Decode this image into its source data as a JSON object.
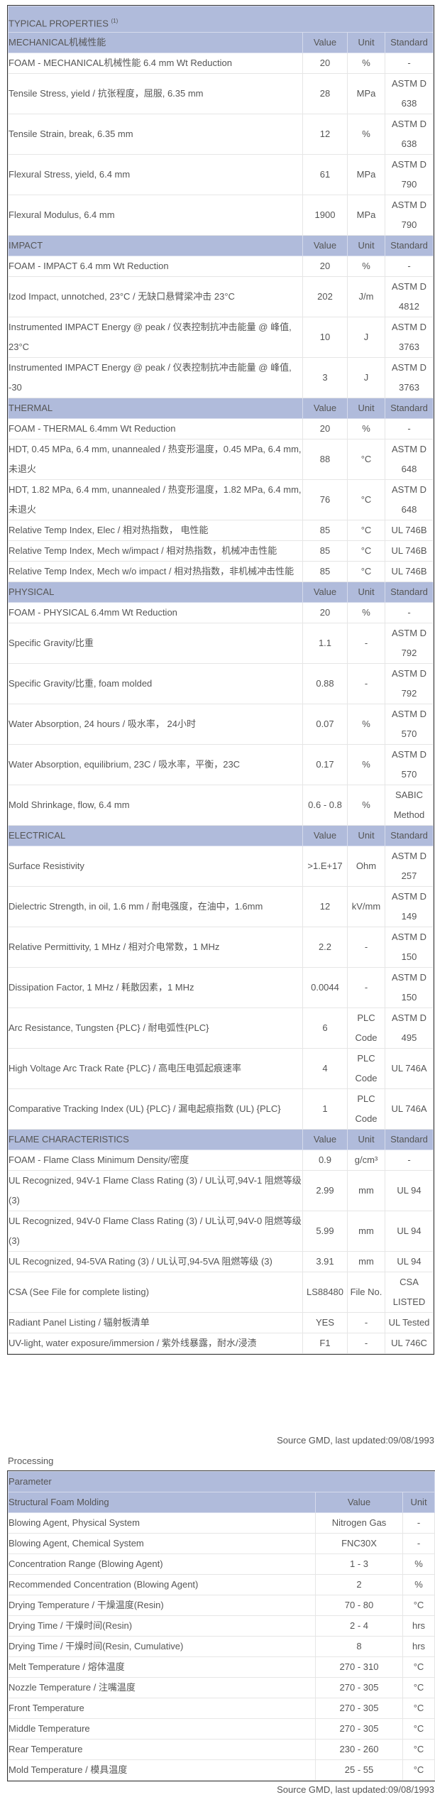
{
  "properties": {
    "title": "TYPICAL PROPERTIES",
    "title_sup": "(1)",
    "col_value": "Value",
    "col_unit": "Unit",
    "col_standard": "Standard",
    "sections": [
      {
        "name": "MECHANICAL机械性能",
        "rows": [
          [
            "FOAM - MECHANICAL机械性能 6.4 mm Wt Reduction",
            "20",
            "%",
            "-"
          ],
          [
            "Tensile Stress, yield / 抗张程度，屈服, 6.35 mm",
            "28",
            "MPa",
            "ASTM D 638"
          ],
          [
            "Tensile Strain, break, 6.35 mm",
            "12",
            "%",
            "ASTM D 638"
          ],
          [
            "Flexural Stress, yield, 6.4 mm",
            "61",
            "MPa",
            "ASTM D 790"
          ],
          [
            "Flexural Modulus, 6.4 mm",
            "1900",
            "MPa",
            "ASTM D 790"
          ]
        ]
      },
      {
        "name": "IMPACT",
        "rows": [
          [
            "FOAM - IMPACT 6.4 mm Wt Reduction",
            "20",
            "%",
            "-"
          ],
          [
            "Izod Impact, unnotched, 23°C / 无缺口悬臂梁冲击 23°C",
            "202",
            "J/m",
            "ASTM D 4812"
          ],
          [
            "Instrumented IMPACT Energy @ peak / 仪表控制抗冲击能量 @ 峰值, 23°C",
            "10",
            "J",
            "ASTM D 3763"
          ],
          [
            "Instrumented IMPACT Energy @ peak / 仪表控制抗冲击能量 @ 峰值, -30",
            "3",
            "J",
            "ASTM D 3763"
          ]
        ]
      },
      {
        "name": "THERMAL",
        "rows": [
          [
            "FOAM - THERMAL 6.4mm Wt Reduction",
            "20",
            "%",
            "-"
          ],
          [
            "HDT, 0.45 MPa, 6.4 mm, unannealed / 热变形温度，0.45 MPa, 6.4 mm, 未退火",
            "88",
            "°C",
            "ASTM D 648"
          ],
          [
            "HDT, 1.82 MPa, 6.4 mm, unannealed / 热变形温度，1.82 MPa, 6.4 mm, 未退火",
            "76",
            "°C",
            "ASTM D 648"
          ],
          [
            "Relative Temp Index, Elec / 相对热指数， 电性能",
            "85",
            "°C",
            "UL 746B"
          ],
          [
            "Relative Temp Index, Mech w/impact / 相对热指数，机械冲击性能",
            "85",
            "°C",
            "UL 746B"
          ],
          [
            "Relative Temp Index, Mech w/o impact / 相对热指数，非机械冲击性能",
            "85",
            "°C",
            "UL 746B"
          ]
        ]
      },
      {
        "name": "PHYSICAL",
        "rows": [
          [
            "FOAM - PHYSICAL 6.4mm Wt Reduction",
            "20",
            "%",
            "-"
          ],
          [
            "Specific Gravity/比重",
            "1.1",
            "-",
            "ASTM D 792"
          ],
          [
            "Specific Gravity/比重, foam molded",
            "0.88",
            "-",
            "ASTM D 792"
          ],
          [
            "Water Absorption, 24 hours / 吸水率， 24小时",
            "0.07",
            "%",
            "ASTM D 570"
          ],
          [
            "Water Absorption, equilibrium, 23C / 吸水率，平衡，23C",
            "0.17",
            "%",
            "ASTM D 570"
          ],
          [
            "Mold Shrinkage, flow, 6.4 mm",
            "0.6 - 0.8",
            "%",
            "SABIC Method"
          ]
        ]
      },
      {
        "name": "ELECTRICAL",
        "rows": [
          [
            "Surface Resistivity",
            ">1.E+17",
            "Ohm",
            "ASTM D 257"
          ],
          [
            "Dielectric Strength, in oil, 1.6 mm / 耐电强度，在油中，1.6mm",
            "12",
            "kV/mm",
            "ASTM D 149"
          ],
          [
            "Relative Permittivity, 1 MHz / 相对介电常数，1 MHz",
            "2.2",
            "-",
            "ASTM D 150"
          ],
          [
            "Dissipation Factor, 1 MHz / 耗散因素，1 MHz",
            "0.0044",
            "-",
            "ASTM D 150"
          ],
          [
            "Arc Resistance, Tungsten {PLC} / 耐电弧性{PLC}",
            "6",
            "PLC Code",
            "ASTM D 495"
          ],
          [
            "High Voltage Arc Track Rate {PLC} / 高电压电弧起痕速率",
            "4",
            "PLC Code",
            "UL 746A"
          ],
          [
            "Comparative Tracking Index (UL) {PLC} / 漏电起痕指数 (UL) {PLC}",
            "1",
            "PLC Code",
            "UL 746A"
          ]
        ]
      },
      {
        "name": "FLAME CHARACTERISTICS",
        "rows": [
          [
            "FOAM - Flame Class Minimum Density/密度",
            "0.9",
            "g/cm³",
            "-"
          ],
          [
            "UL Recognized, 94V-1 Flame Class Rating (3) / UL认可,94V-1 阻燃等级(3)",
            "2.99",
            "mm",
            "UL 94"
          ],
          [
            "UL Recognized, 94V-0 Flame Class Rating (3) / UL认可,94V-0 阻燃等级(3)",
            "5.99",
            "mm",
            "UL 94"
          ],
          [
            "UL Recognized, 94-5VA Rating (3) / UL认可,94-5VA 阻燃等级 (3)",
            "3.91",
            "mm",
            "UL 94"
          ],
          [
            "CSA (See File for complete listing)",
            "LS88480",
            "File No.",
            "CSA LISTED"
          ],
          [
            "Radiant Panel Listing / 辐射板清单",
            "YES",
            "-",
            "UL Tested"
          ],
          [
            "UV-light, water exposure/immersion / 紫外线暴露，耐水/浸渍",
            "F1",
            "-",
            "UL 746C"
          ]
        ]
      }
    ],
    "source": "Source GMD, last updated:09/08/1993"
  },
  "processing": {
    "title": "Processing",
    "param_header": "Parameter",
    "section_name": "Structural Foam Molding",
    "col_value": "Value",
    "col_unit": "Unit",
    "rows": [
      [
        "Blowing Agent, Physical System",
        "Nitrogen Gas",
        "-"
      ],
      [
        "Blowing Agent, Chemical System",
        "FNC30X",
        "-"
      ],
      [
        "Concentration Range (Blowing Agent)",
        "1 - 3",
        "%"
      ],
      [
        "Recommended Concentration (Blowing Agent)",
        "2",
        "%"
      ],
      [
        "Drying Temperature / 干燥温度(Resin)",
        "70 - 80",
        "°C"
      ],
      [
        "Drying Time / 干燥时间(Resin)",
        "2 - 4",
        "hrs"
      ],
      [
        "Drying Time / 干燥时间(Resin, Cumulative)",
        "8",
        "hrs"
      ],
      [
        "Melt Temperature / 熔体温度",
        "270 - 310",
        "°C"
      ],
      [
        "Nozzle Temperature / 注嘴温度",
        "270 - 305",
        "°C"
      ],
      [
        "Front Temperature",
        "270 - 305",
        "°C"
      ],
      [
        "Middle Temperature",
        "270 - 305",
        "°C"
      ],
      [
        "Rear Temperature",
        "230 - 260",
        "°C"
      ],
      [
        "Mold Temperature / 模具温度",
        "25 - 55",
        "°C"
      ]
    ],
    "source": "Source GMD, last updated:09/08/1993"
  },
  "colors": {
    "header_bg": "#b0bbdb",
    "text": "#555555",
    "border": "#333333"
  }
}
